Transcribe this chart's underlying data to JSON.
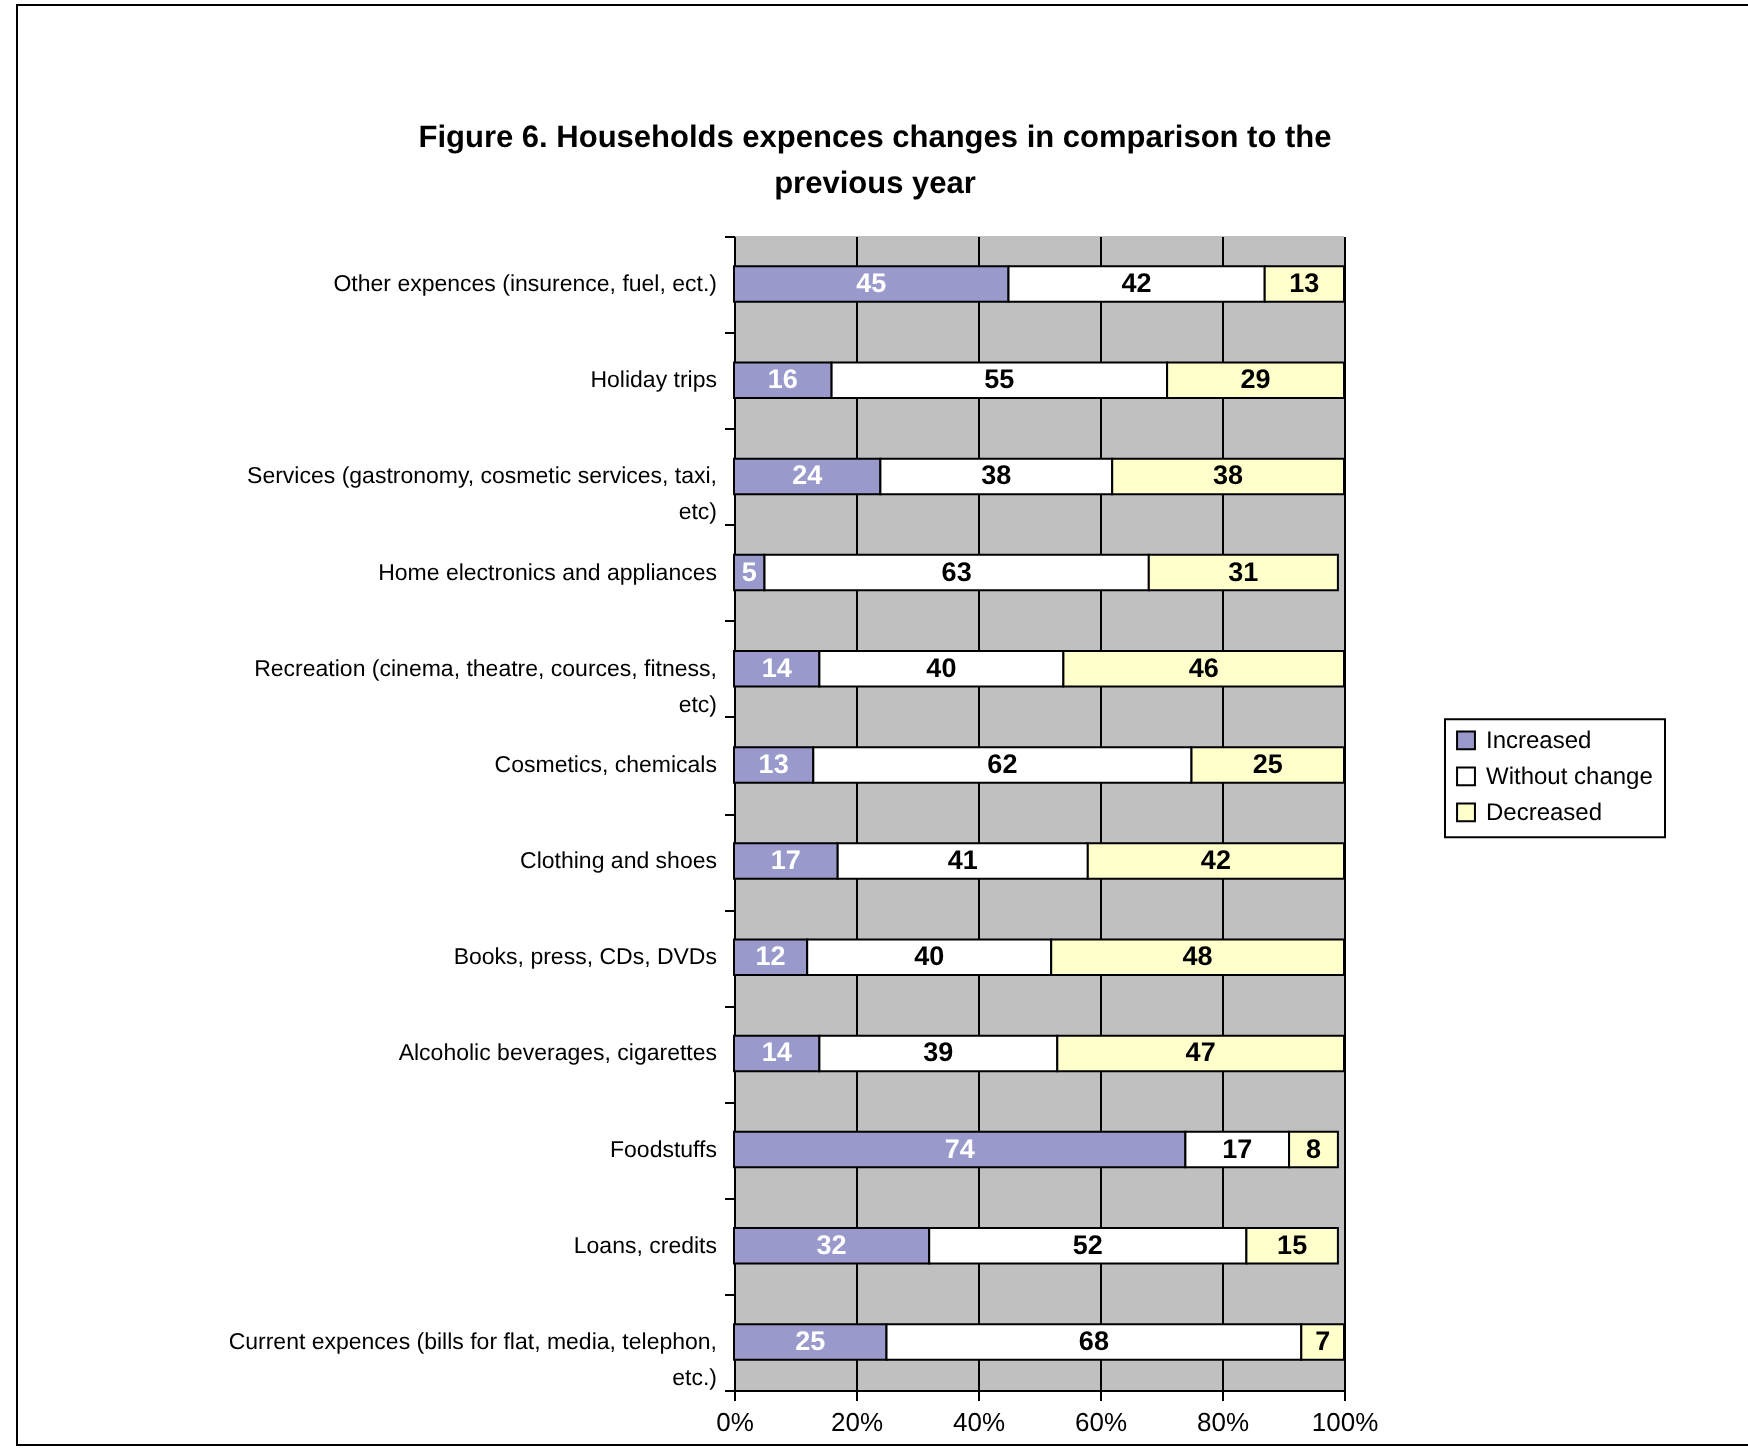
{
  "chart_data": {
    "type": "bar",
    "orientation": "horizontal",
    "stacked": true,
    "title": "Figure 6. Households expences changes in comparison to the previous year",
    "categories": [
      "Other expences (insurence, fuel, ect.)",
      "Holiday trips",
      "Services (gastronomy, cosmetic services, taxi, etc)",
      "Home electronics and appliances",
      "Recreation (cinema, theatre, cources, fitness, etc)",
      "Cosmetics, chemicals",
      "Clothing and shoes",
      "Books, press, CDs, DVDs",
      "Alcoholic beverages, cigarettes",
      "Foodstuffs",
      "Loans, credits",
      "Current expences (bills for flat, media, telephon, etc.)"
    ],
    "series": [
      {
        "name": "Increased",
        "color": "#9999cc",
        "values": [
          45,
          16,
          24,
          5,
          14,
          13,
          17,
          12,
          14,
          74,
          32,
          25
        ]
      },
      {
        "name": "Without change",
        "color": "#ffffff",
        "values": [
          42,
          55,
          38,
          63,
          40,
          62,
          41,
          40,
          39,
          17,
          52,
          68
        ]
      },
      {
        "name": "Decreased",
        "color": "#ffffcc",
        "values": [
          13,
          29,
          38,
          31,
          46,
          25,
          42,
          48,
          47,
          8,
          15,
          7
        ]
      }
    ],
    "xlim": [
      0,
      100
    ],
    "xticks": [
      {
        "value": 0,
        "label": "0%"
      },
      {
        "value": 20,
        "label": "20%"
      },
      {
        "value": 40,
        "label": "40%"
      },
      {
        "value": 60,
        "label": "60%"
      },
      {
        "value": 80,
        "label": "80%"
      },
      {
        "value": 100,
        "label": "100%"
      }
    ],
    "grid": "x",
    "legend": "right",
    "data_labels": true
  }
}
